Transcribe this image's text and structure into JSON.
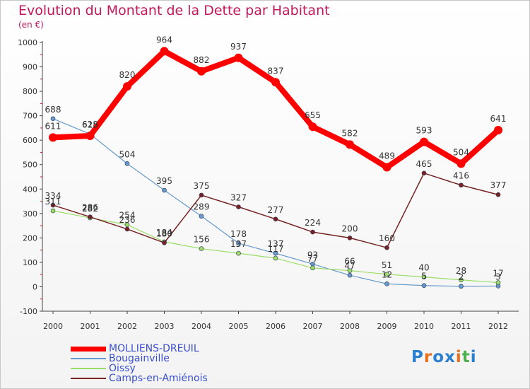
{
  "title": "Evolution du Montant de la Dette par Habitant",
  "subtitle": "(en €)",
  "logo": {
    "text": "Proxiti",
    "colors": [
      "#2a7fd0",
      "#e8701a",
      "#2a7fd0",
      "#2a7fd0",
      "#e8701a",
      "#4caf50",
      "#2a7fd0"
    ]
  },
  "chart_data": {
    "type": "line",
    "x": [
      "2000",
      "2001",
      "2002",
      "2003",
      "2004",
      "2005",
      "2006",
      "2007",
      "2008",
      "2009",
      "2010",
      "2011",
      "2012"
    ],
    "ylim": [
      -100,
      1000
    ],
    "yticks": [
      "-100",
      "0",
      "100",
      "200",
      "300",
      "400",
      "500",
      "600",
      "700",
      "800",
      "900",
      "1000"
    ],
    "grid": false,
    "legend_position": "bottom-left",
    "series": [
      {
        "name": "MOLLIENS-DREUIL",
        "color": "#ff0000",
        "values": [
          611,
          618,
          820,
          964,
          882,
          937,
          837,
          655,
          582,
          489,
          593,
          504,
          641
        ],
        "labels": [
          "611",
          "618",
          "820",
          "964",
          "882",
          "937",
          "837",
          "655",
          "582",
          "489",
          "593",
          "504",
          "641"
        ]
      },
      {
        "name": "Bougainville",
        "color": "#6699cc",
        "values": [
          688,
          625,
          504,
          395,
          289,
          178,
          137,
          93,
          47,
          12,
          5,
          2,
          3
        ],
        "labels": [
          "688",
          "625",
          "504",
          "395",
          "289",
          "178",
          "137",
          "93",
          "47",
          "12",
          "5",
          "2",
          "3"
        ]
      },
      {
        "name": "Oissy",
        "color": "#99dd66",
        "values": [
          311,
          282,
          254,
          184,
          156,
          137,
          117,
          77,
          66,
          51,
          40,
          28,
          17
        ],
        "labels": [
          "311",
          "282",
          "254",
          "184",
          "156",
          "137",
          "117",
          "77",
          "66",
          "51",
          "40",
          "28",
          "17"
        ]
      },
      {
        "name": "Camps-en-Amiénois",
        "color": "#772222",
        "values": [
          334,
          286,
          236,
          180,
          375,
          327,
          277,
          224,
          200,
          160,
          465,
          416,
          377
        ],
        "labels": [
          "334",
          "286",
          "236",
          "180",
          "375",
          "327",
          "277",
          "224",
          "200",
          "160",
          "465",
          "416",
          "377"
        ]
      }
    ]
  }
}
